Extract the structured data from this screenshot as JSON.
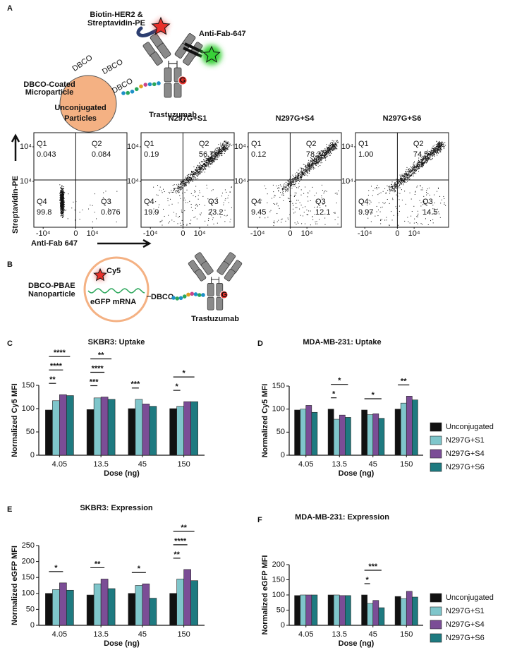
{
  "panel_labels": [
    "A",
    "B",
    "C",
    "D",
    "E",
    "F"
  ],
  "diagram_a": {
    "reagent": [
      "Biotin-HER2 &",
      "Streptavidin-PE"
    ],
    "secondary": "Anti-Fab-647",
    "particle": [
      "DBCO-Coated",
      "Microparticle"
    ],
    "dbco": [
      "DBCO",
      "DBCO",
      "DBCO"
    ],
    "site": "G",
    "antibody": "Trastuzumab"
  },
  "flow": {
    "y_axis_label": "Streptavidin-PE",
    "x_axis_label": "Anti-Fab 647",
    "yticks": [
      "10⁴",
      "10⁴"
    ],
    "xticks": [
      "-10⁴",
      "0",
      "10⁴"
    ],
    "plots": [
      {
        "title": [
          "Unconjugated",
          "Particles"
        ],
        "quadrants": [
          [
            "Q1",
            "0.043"
          ],
          [
            "Q2",
            "0.084"
          ],
          [
            "Q4",
            "99.8"
          ],
          [
            "Q3",
            "0.076"
          ]
        ]
      },
      {
        "title": [
          "N297G+S1"
        ],
        "quadrants": [
          [
            "Q1",
            "0.19"
          ],
          [
            "Q2",
            "56.7"
          ],
          [
            "Q4",
            "19.9"
          ],
          [
            "Q3",
            "23.2"
          ]
        ]
      },
      {
        "title": [
          "N297G+S4"
        ],
        "quadrants": [
          [
            "Q1",
            "0.12"
          ],
          [
            "Q2",
            "78.3"
          ],
          [
            "Q4",
            "9.45"
          ],
          [
            "Q3",
            "12.1"
          ]
        ]
      },
      {
        "title": [
          "N297G+S6"
        ],
        "quadrants": [
          [
            "Q1",
            "1.00"
          ],
          [
            "Q2",
            "74.5"
          ],
          [
            "Q4",
            "9.97"
          ],
          [
            "Q3",
            "14.5"
          ]
        ]
      }
    ]
  },
  "diagram_b": {
    "particle": [
      "DBCO-PBAE",
      "Nanoparticle"
    ],
    "dye": "Cy5",
    "cargo": "eGFP mRNA",
    "linker": "DBCO",
    "site": "G",
    "antibody": "Trastuzumab"
  },
  "chart_data": [
    {
      "type": "bar",
      "title": "SKBR3: Uptake",
      "xlabel": "Dose (ng)",
      "ylabel": "Normalized Cy5 MFI",
      "categories": [
        "4.05",
        "13.5",
        "45",
        "150"
      ],
      "ylim": [
        0,
        150
      ],
      "yticks": [
        0,
        50,
        100,
        150
      ],
      "series": [
        {
          "color": "#111111",
          "values": [
            97,
            98,
            100,
            100
          ]
        },
        {
          "color": "#7fc6cb",
          "values": [
            117,
            123,
            120,
            105
          ]
        },
        {
          "color": "#7b4d96",
          "values": [
            130,
            125,
            110,
            115
          ]
        },
        {
          "color": "#1e7a80",
          "values": [
            128,
            120,
            105,
            115
          ]
        }
      ],
      "annotations": [
        {
          "text": "**",
          "group": 0,
          "from": 0,
          "to": 1
        },
        {
          "text": "****",
          "group": 0,
          "from": 0,
          "to": 2
        },
        {
          "text": "****",
          "group": 0,
          "from": 0,
          "to": 3
        },
        {
          "text": "***",
          "group": 1,
          "from": 0,
          "to": 1
        },
        {
          "text": "****",
          "group": 1,
          "from": 0,
          "to": 2
        },
        {
          "text": "**",
          "group": 1,
          "from": 0,
          "to": 3
        },
        {
          "text": "***",
          "group": 2,
          "from": 0,
          "to": 1
        },
        {
          "text": "*",
          "group": 3,
          "from": 0,
          "to": 1
        },
        {
          "text": "*",
          "group": 3,
          "from": 0,
          "to": 3
        }
      ]
    },
    {
      "type": "bar",
      "title": "MDA-MB-231: Uptake",
      "xlabel": "Dose (ng)",
      "ylabel": "Normalized Cy5 MFI",
      "categories": [
        "4.05",
        "13.5",
        "45",
        "150"
      ],
      "ylim": [
        0,
        150
      ],
      "yticks": [
        0,
        50,
        100,
        150
      ],
      "legend": "right",
      "series": [
        {
          "name": "Unconjugated",
          "color": "#111111",
          "values": [
            98,
            100,
            98,
            100
          ]
        },
        {
          "name": "N297G+S1",
          "color": "#7fc6cb",
          "values": [
            100,
            78,
            88,
            113
          ]
        },
        {
          "name": "N297G+S4",
          "color": "#7b4d96",
          "values": [
            108,
            87,
            90,
            128
          ]
        },
        {
          "name": "N297G+S6",
          "color": "#1e7a80",
          "values": [
            93,
            82,
            80,
            120
          ]
        }
      ],
      "annotations": [
        {
          "text": "*",
          "group": 1,
          "from": 0,
          "to": 1
        },
        {
          "text": "*",
          "group": 1,
          "from": 0,
          "to": 3
        },
        {
          "text": "*",
          "group": 2,
          "from": 0,
          "to": 3
        },
        {
          "text": "**",
          "group": 3,
          "from": 0,
          "to": 2
        }
      ]
    },
    {
      "type": "bar",
      "title": "SKBR3: Expression",
      "xlabel": "Dose (ng)",
      "ylabel": "Normalized eGFP MFI",
      "categories": [
        "4.05",
        "13.5",
        "45",
        "150"
      ],
      "ylim": [
        0,
        250
      ],
      "yticks": [
        0,
        50,
        100,
        150,
        200,
        250
      ],
      "series": [
        {
          "color": "#111111",
          "values": [
            100,
            95,
            100,
            100
          ]
        },
        {
          "color": "#7fc6cb",
          "values": [
            112,
            130,
            125,
            145
          ]
        },
        {
          "color": "#7b4d96",
          "values": [
            133,
            145,
            130,
            175
          ]
        },
        {
          "color": "#1e7a80",
          "values": [
            110,
            115,
            85,
            140
          ]
        }
      ],
      "annotations": [
        {
          "text": "*",
          "group": 0,
          "from": 0,
          "to": 2
        },
        {
          "text": "**",
          "group": 1,
          "from": 0,
          "to": 2
        },
        {
          "text": "*",
          "group": 2,
          "from": 0,
          "to": 2
        },
        {
          "text": "**",
          "group": 3,
          "from": 0,
          "to": 1
        },
        {
          "text": "****",
          "group": 3,
          "from": 0,
          "to": 2
        },
        {
          "text": "**",
          "group": 3,
          "from": 0,
          "to": 3
        }
      ]
    },
    {
      "type": "bar",
      "title": "MDA-MB-231: Expression",
      "xlabel": "Dose (ng)",
      "ylabel": "Normalized eGFP MFI",
      "categories": [
        "4.05",
        "13.5",
        "45",
        "150"
      ],
      "ylim": [
        0,
        200
      ],
      "yticks": [
        0,
        50,
        100,
        150,
        200
      ],
      "legend": "right",
      "series": [
        {
          "name": "Unconjugated",
          "color": "#111111",
          "values": [
            98,
            100,
            100,
            95
          ]
        },
        {
          "name": "N297G+S1",
          "color": "#7fc6cb",
          "values": [
            100,
            100,
            72,
            88
          ]
        },
        {
          "name": "N297G+S4",
          "color": "#7b4d96",
          "values": [
            100,
            98,
            82,
            112
          ]
        },
        {
          "name": "N297G+S6",
          "color": "#1e7a80",
          "values": [
            100,
            98,
            58,
            93
          ]
        }
      ],
      "annotations": [
        {
          "text": "*",
          "group": 2,
          "from": 0,
          "to": 1
        },
        {
          "text": "***",
          "group": 2,
          "from": 0,
          "to": 3
        }
      ]
    }
  ]
}
